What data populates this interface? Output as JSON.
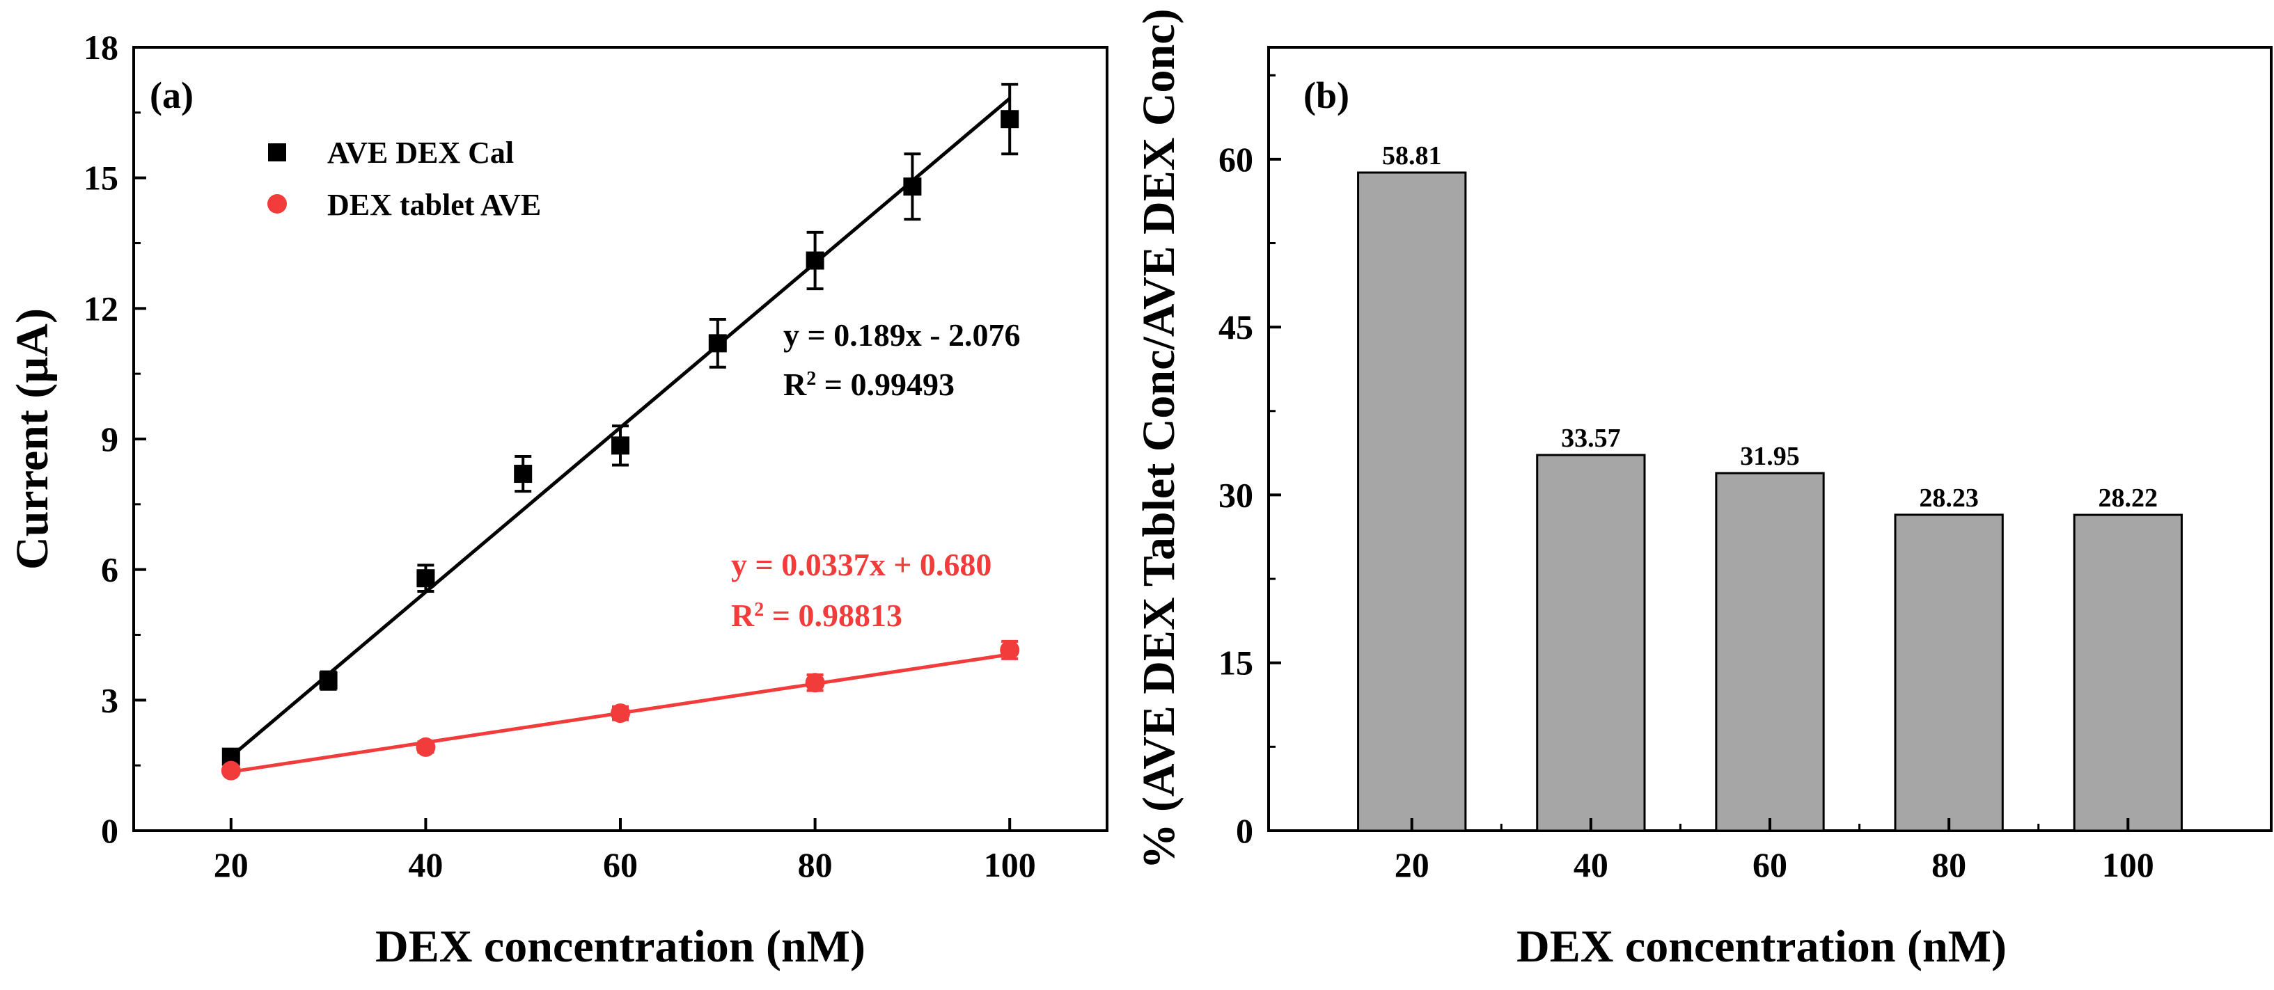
{
  "chart_data": [
    {
      "type": "scatter",
      "panel_label": "(a)",
      "xlabel": "DEX concentration (nM)",
      "ylabel": "Current (µA)",
      "xlim": [
        10,
        110
      ],
      "ylim": [
        0,
        18
      ],
      "xticks": [
        20,
        40,
        60,
        80,
        100
      ],
      "yticks": [
        0,
        3,
        6,
        9,
        12,
        15,
        18
      ],
      "legend_position": "top-left",
      "series": [
        {
          "name": "AVE DEX Cal",
          "marker": "square",
          "color": "#000000",
          "x": [
            20,
            30,
            40,
            50,
            60,
            70,
            80,
            90,
            100
          ],
          "y": [
            1.7,
            3.45,
            5.8,
            8.2,
            8.85,
            11.2,
            13.1,
            14.8,
            16.35
          ],
          "err": [
            0.15,
            0.2,
            0.3,
            0.4,
            0.45,
            0.55,
            0.65,
            0.75,
            0.8
          ],
          "fit": {
            "slope": 0.189,
            "intercept": -2.076,
            "x_range": [
              20,
              100
            ]
          },
          "equation": "y = 0.189x - 2.076",
          "r2_label": "R",
          "r2_value": " = 0.99493"
        },
        {
          "name": "DEX tablet AVE",
          "marker": "circle",
          "color": "#f23c3c",
          "x": [
            20,
            40,
            60,
            80,
            100
          ],
          "y": [
            1.38,
            1.92,
            2.7,
            3.4,
            4.15
          ],
          "err": [
            0.1,
            0.12,
            0.15,
            0.18,
            0.2
          ],
          "fit": {
            "slope": 0.0337,
            "intercept": 0.68,
            "x_range": [
              20,
              100
            ]
          },
          "equation": "y = 0.0337x + 0.680",
          "r2_label": "R",
          "r2_value": " = 0.98813"
        }
      ]
    },
    {
      "type": "bar",
      "panel_label": "(b)",
      "xlabel": "DEX concentration (nM)",
      "ylabel": "% (AVE DEX Tablet Conc/AVE DEX Conc)",
      "categories": [
        "20",
        "40",
        "60",
        "80",
        "100"
      ],
      "values": [
        58.81,
        33.57,
        31.95,
        28.23,
        28.22
      ],
      "value_labels": [
        "58.81",
        "33.57",
        "31.95",
        "28.23",
        "28.22"
      ],
      "ylim": [
        0,
        70
      ],
      "yticks": [
        0,
        15,
        30,
        45,
        60
      ],
      "bar_color": "#a6a6a6"
    }
  ]
}
